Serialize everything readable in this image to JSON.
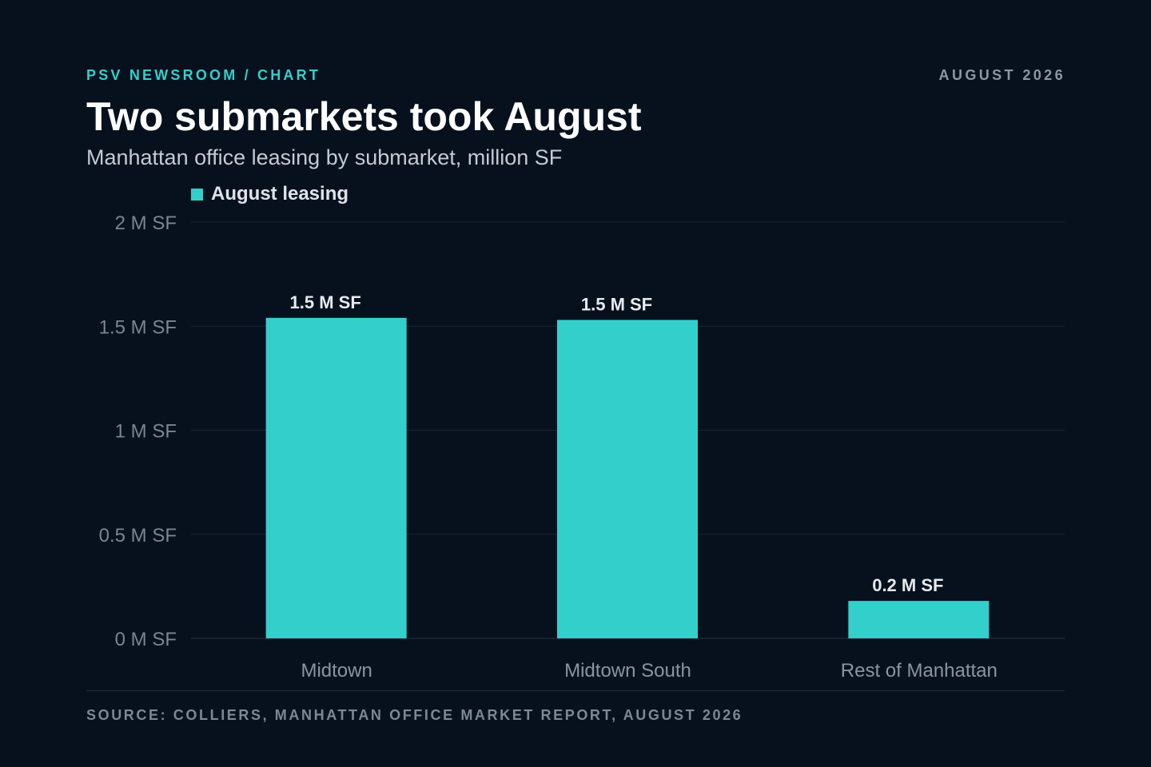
{
  "header": {
    "kicker": "PSV NEWSROOM / CHART",
    "date": "AUGUST 2026"
  },
  "footer": {
    "source": "SOURCE: COLLIERS, MANHATTAN OFFICE MARKET REPORT, AUGUST 2026"
  },
  "colors": {
    "background": "#07111e",
    "accent": "#33cfcb",
    "grid": "#1a2432",
    "muted_text": "#8d97a3"
  },
  "chart_data": {
    "type": "bar",
    "title": "Two submarkets took August",
    "subtitle": "Manhattan office leasing by submarket, million SF",
    "categories": [
      "Midtown",
      "Midtown South",
      "Rest of Manhattan"
    ],
    "series": [
      {
        "name": "August leasing",
        "values": [
          1.54,
          1.53,
          0.18
        ],
        "data_labels": [
          "1.5 M SF",
          "1.5 M SF",
          "0.2 M SF"
        ],
        "color": "#33cfcb"
      }
    ],
    "ylim": [
      0,
      2
    ],
    "yticks": [
      0,
      0.5,
      1,
      1.5,
      2
    ],
    "ytick_labels": [
      "0 M SF",
      "0.5 M SF",
      "1 M SF",
      "1.5 M SF",
      "2 M SF"
    ],
    "xlabel": "",
    "ylabel": "",
    "grid": true,
    "legend": "top-left"
  }
}
